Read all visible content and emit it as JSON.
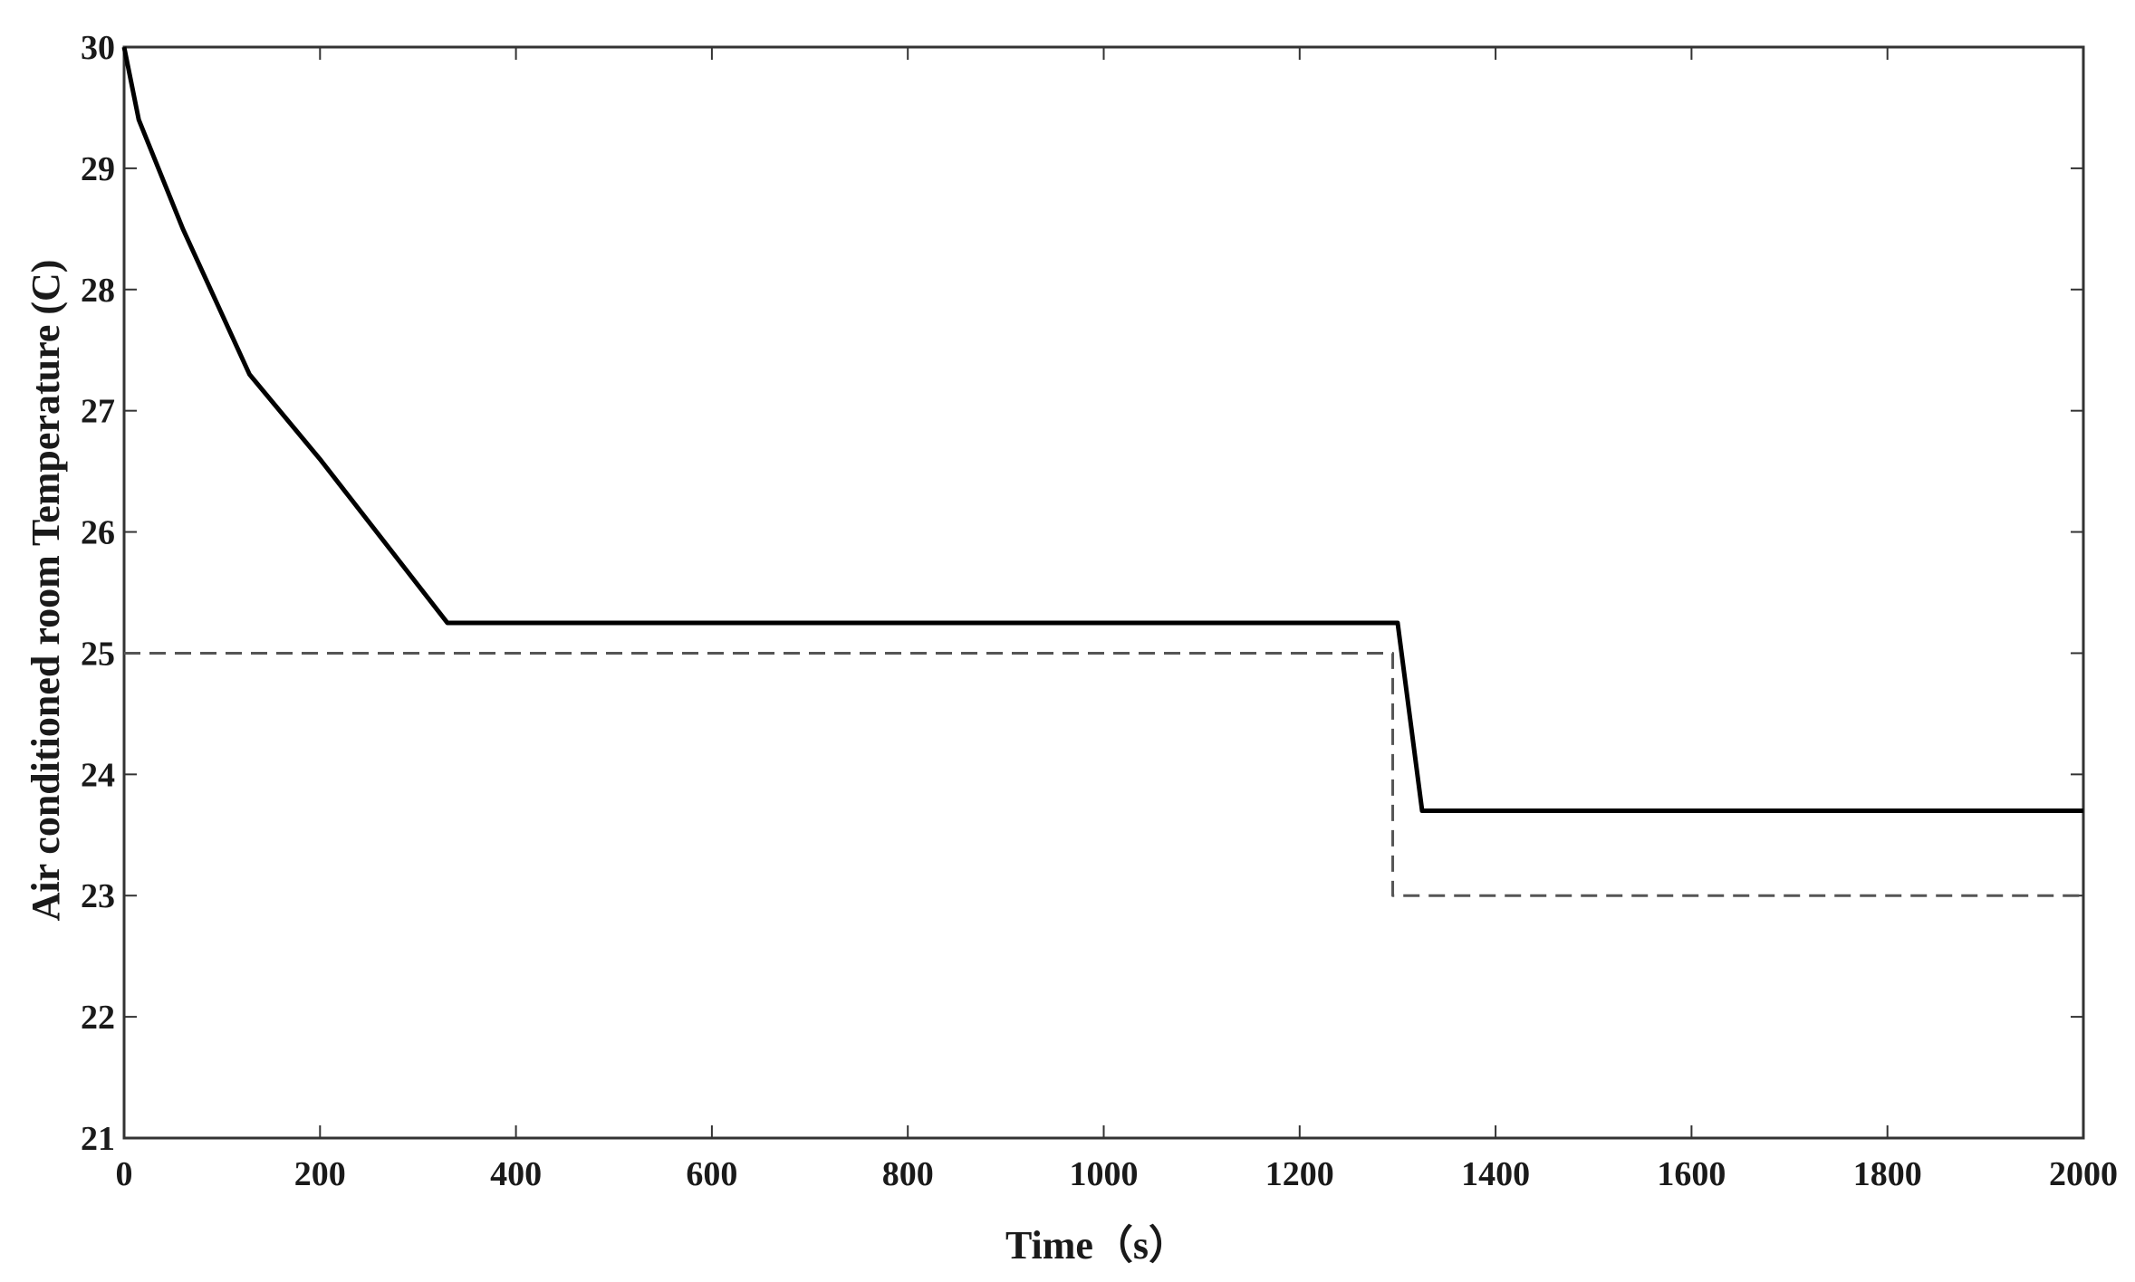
{
  "chart_data": {
    "type": "line",
    "xlabel": "Time（s）",
    "ylabel": "Air conditioned room Temperature (C)",
    "xlim": [
      0,
      2000
    ],
    "ylim": [
      21,
      30
    ],
    "grid": false,
    "x_ticks": [
      "0",
      "200",
      "400",
      "600",
      "800",
      "1000",
      "1200",
      "1400",
      "1600",
      "1800",
      "2000"
    ],
    "y_ticks": [
      "21",
      "22",
      "23",
      "24",
      "25",
      "26",
      "27",
      "28",
      "29",
      "30"
    ],
    "series": [
      {
        "style": "solid",
        "color": "#000000",
        "x": [
          0,
          15,
          60,
          128,
          200,
          330,
          1300,
          1325,
          2000
        ],
        "y": [
          30,
          29.4,
          28.5,
          27.3,
          26.6,
          25.25,
          25.25,
          23.7,
          23.7
        ]
      },
      {
        "style": "dashed",
        "color": "#555555",
        "x": [
          0,
          1295,
          1295,
          2000
        ],
        "y": [
          25,
          25,
          23,
          23
        ]
      }
    ]
  }
}
